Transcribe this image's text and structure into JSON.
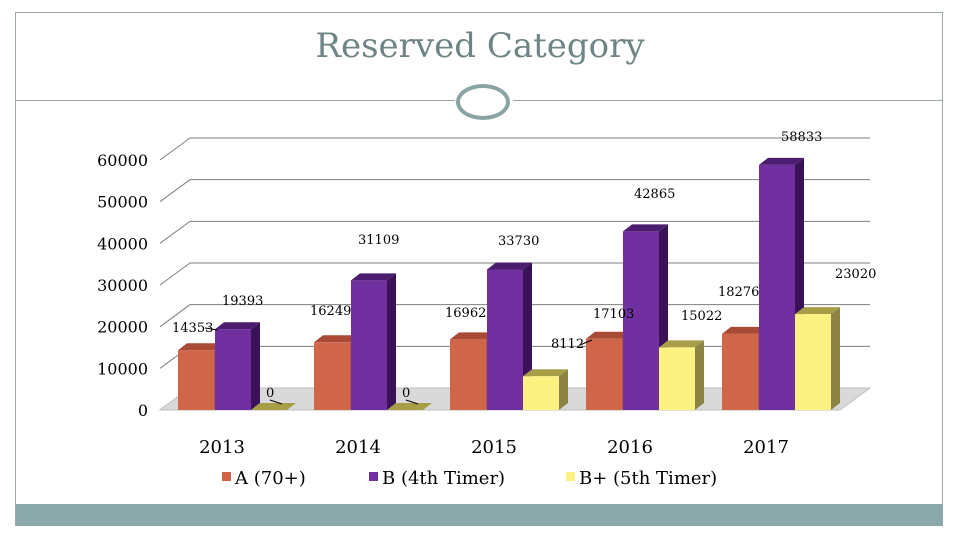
{
  "slide": {
    "title": "Reserved Category"
  },
  "colors": {
    "A": "#d0654a",
    "A_top": "#a84a35",
    "A_side": "#b05a42",
    "B": "#7030a0",
    "B_top": "#4a1d6e",
    "B_side": "#3a1258",
    "C": "#fcf282",
    "C_top": "#a89e48",
    "C_side": "#8c8444",
    "grid": "#7f7f7f",
    "frame": "#9aa9a8",
    "footer": "#8aa9aa"
  },
  "chart_data": {
    "type": "bar",
    "title": "Reserved Category",
    "categories": [
      "2013",
      "2014",
      "2015",
      "2016",
      "2017"
    ],
    "ylim": [
      0,
      60000
    ],
    "yticks": [
      "0",
      "10000",
      "20000",
      "30000",
      "40000",
      "50000",
      "60000"
    ],
    "ytick_values": [
      0,
      10000,
      20000,
      30000,
      40000,
      50000,
      60000
    ],
    "grid": true,
    "legend_position": "bottom",
    "series": [
      {
        "key": "A",
        "name": "A  (70+)",
        "values": [
          14353,
          16249,
          16962,
          17103,
          18276
        ],
        "labels": [
          "14353",
          "16249",
          "16962",
          "17103",
          "18276"
        ]
      },
      {
        "key": "B",
        "name": "B (4th Timer)",
        "values": [
          19393,
          31109,
          33730,
          42865,
          58833
        ],
        "labels": [
          "19393",
          "31109",
          "33730",
          "42865",
          "58833"
        ]
      },
      {
        "key": "C",
        "name": "B+  (5th Timer)",
        "values": [
          0,
          0,
          8112,
          15022,
          23020
        ],
        "labels": [
          "0",
          "0",
          "8112",
          "15022",
          "23020"
        ]
      }
    ]
  }
}
